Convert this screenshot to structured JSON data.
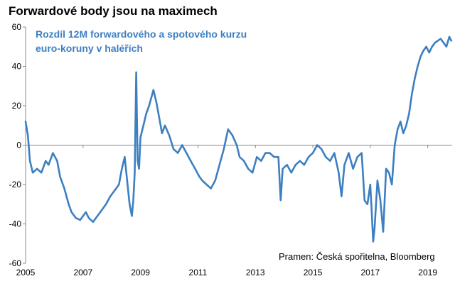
{
  "chart_data": {
    "type": "line",
    "title": "Forwardové body jsou na maximech",
    "subtitle": "Rozdíl 12M forwardového a spotového kurzu euro-koruny v haléřích",
    "source": "Pramen: Česká spořitelna, Bloomberg",
    "xlabel": "",
    "ylabel": "",
    "xlim": [
      2005,
      2019.85
    ],
    "ylim": [
      -60,
      60
    ],
    "x_ticks": [
      "2005",
      "2007",
      "2009",
      "2011",
      "2013",
      "2015",
      "2017",
      "2019"
    ],
    "y_ticks": [
      "60",
      "40",
      "20",
      "0",
      "-20",
      "-40",
      "-60"
    ],
    "series": [
      {
        "name": "Rozdíl 12M forwardového a spotového kurzu euro-koruny",
        "color": "#3d7fc1",
        "x": [
          2005.0,
          2005.08,
          2005.15,
          2005.25,
          2005.4,
          2005.55,
          2005.7,
          2005.8,
          2005.95,
          2006.1,
          2006.2,
          2006.35,
          2006.5,
          2006.6,
          2006.75,
          2006.9,
          2007.0,
          2007.1,
          2007.2,
          2007.35,
          2007.5,
          2007.65,
          2007.8,
          2007.95,
          2008.05,
          2008.15,
          2008.25,
          2008.35,
          2008.45,
          2008.55,
          2008.62,
          2008.7,
          2008.75,
          2008.8,
          2008.85,
          2008.9,
          2008.95,
          2009.0,
          2009.1,
          2009.2,
          2009.3,
          2009.45,
          2009.55,
          2009.65,
          2009.75,
          2009.85,
          2010.0,
          2010.15,
          2010.3,
          2010.45,
          2010.6,
          2010.75,
          2010.9,
          2011.05,
          2011.15,
          2011.3,
          2011.45,
          2011.6,
          2011.75,
          2011.9,
          2012.05,
          2012.2,
          2012.35,
          2012.45,
          2012.6,
          2012.75,
          2012.9,
          2013.05,
          2013.2,
          2013.35,
          2013.5,
          2013.65,
          2013.8,
          2013.88,
          2013.95,
          2014.1,
          2014.25,
          2014.4,
          2014.55,
          2014.7,
          2014.85,
          2015.0,
          2015.15,
          2015.3,
          2015.45,
          2015.6,
          2015.75,
          2015.9,
          2016.0,
          2016.1,
          2016.25,
          2016.4,
          2016.55,
          2016.7,
          2016.8,
          2016.9,
          2017.0,
          2017.05,
          2017.1,
          2017.15,
          2017.25,
          2017.35,
          2017.45,
          2017.55,
          2017.65,
          2017.75,
          2017.85,
          2017.95,
          2018.05,
          2018.15,
          2018.25,
          2018.35,
          2018.45,
          2018.55,
          2018.65,
          2018.75,
          2018.85,
          2018.95,
          2019.05,
          2019.15,
          2019.25,
          2019.35,
          2019.45,
          2019.55,
          2019.65,
          2019.75,
          2019.82
        ],
        "values": [
          12,
          5,
          -8,
          -14,
          -12,
          -14,
          -8,
          -10,
          -4,
          -8,
          -16,
          -22,
          -30,
          -34,
          -37,
          -38,
          -36,
          -34,
          -37,
          -39,
          -36,
          -33,
          -30,
          -26,
          -24,
          -22,
          -20,
          -12,
          -6,
          -20,
          -30,
          -36,
          -28,
          -14,
          37,
          -8,
          -12,
          4,
          10,
          16,
          20,
          28,
          22,
          14,
          6,
          10,
          5,
          -2,
          -4,
          0,
          -4,
          -8,
          -12,
          -16,
          -18,
          -20,
          -22,
          -18,
          -10,
          -2,
          8,
          5,
          0,
          -6,
          -8,
          -12,
          -14,
          -6,
          -8,
          -4,
          -4,
          -6,
          -6,
          -28,
          -12,
          -10,
          -14,
          -10,
          -8,
          -10,
          -6,
          -4,
          0,
          -2,
          -6,
          -8,
          -4,
          -14,
          -26,
          -10,
          -4,
          -12,
          -6,
          -4,
          -28,
          -30,
          -20,
          -34,
          -49,
          -42,
          -18,
          -28,
          -44,
          -12,
          -14,
          -20,
          0,
          8,
          12,
          6,
          10,
          16,
          26,
          34,
          40,
          45,
          48,
          50,
          47,
          50,
          52,
          53,
          54,
          52,
          50,
          55,
          53
        ]
      }
    ]
  }
}
